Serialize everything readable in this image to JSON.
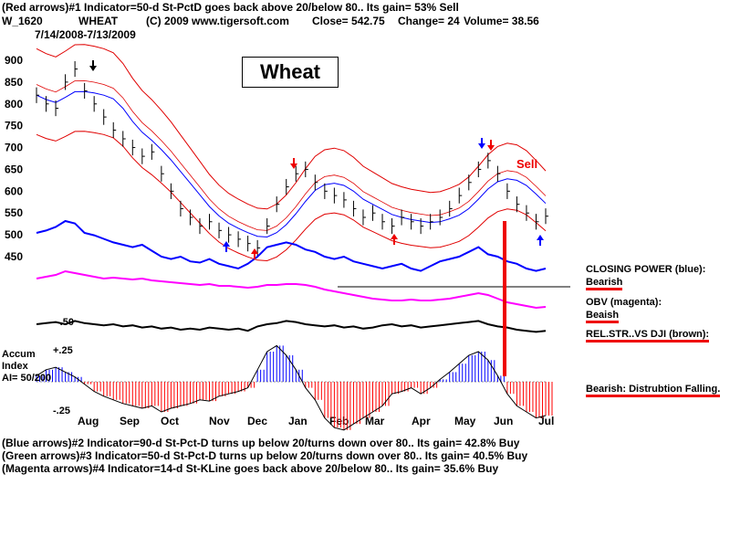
{
  "header": {
    "line1": "(Red arrows)#1 Indicator=50-d St-PctD goes back above 20/below 80.. Its gain= 53% Sell",
    "symbol": "W_1620",
    "name": "WHEAT",
    "copyright": "(C) 2009 www.tigersoft.com",
    "close": "Close=  542.75",
    "change": "Change= 24",
    "volume": "Volume= 38.56",
    "date_range": "7/14/2008-7/13/2009"
  },
  "footer": {
    "line1": "(Blue arrows)#2 Indicator=90-d St-Pct-D turns up below 20/turns down over 80.. Its gain= 42.8% Buy",
    "line2": "(Green arrows)#3 Indicator=50-d St-Pct-D turns up below 20/turns down over 80.. Its gain= 40.5% Buy",
    "line3": "(Magenta arrows)#4 Indicator=14-d St-KLine goes back above 20/below 80.. Its gain= 35.6% Buy"
  },
  "annotations": {
    "title": "Wheat",
    "sell": "Sell",
    "closing_power": "CLOSING POWER (blue):",
    "closing_power_status": "Bearish",
    "obv": "OBV (magenta):",
    "obv_status": "Beaish",
    "rel_str": "REL.STR..VS DJI (brown):",
    "accum_status": "Bearish: Distrubtion Falling.",
    "accum_label1": "Accum",
    "accum_label2": "Index",
    "accum_label3": "AI= 50/200",
    "rel_tick": "-.50"
  },
  "colors": {
    "price": "#000000",
    "bands": "#e00000",
    "ma": "#0000ff",
    "closing_power": "#0000ff",
    "obv": "#ff00ff",
    "rel_str": "#000000",
    "accum_pos": "#0000ff",
    "accum_neg": "#ff0000"
  },
  "chart_data": {
    "type": "line",
    "title": "Wheat",
    "price_ticks": [
      "900",
      "850",
      "800",
      "750",
      "700",
      "650",
      "600",
      "550",
      "500",
      "450"
    ],
    "ylim": [
      450,
      900
    ],
    "months": [
      "Aug",
      "Sep",
      "Oct",
      "Nov",
      "Dec",
      "Jan",
      "Feb",
      "Mar",
      "Apr",
      "May",
      "Jun",
      "Jul"
    ],
    "weekly_close": [
      820,
      800,
      790,
      850,
      880,
      830,
      800,
      770,
      740,
      720,
      700,
      680,
      690,
      640,
      600,
      560,
      540,
      520,
      530,
      510,
      500,
      490,
      480,
      470,
      520,
      570,
      610,
      640,
      650,
      620,
      600,
      590,
      580,
      560,
      540,
      550,
      530,
      520,
      540,
      530,
      520,
      530,
      540,
      560,
      590,
      620,
      650,
      670,
      640,
      600,
      570,
      550,
      530,
      542.75
    ],
    "closing_power": [
      50,
      52,
      55,
      60,
      58,
      50,
      48,
      45,
      42,
      40,
      38,
      40,
      35,
      30,
      28,
      30,
      26,
      25,
      28,
      24,
      22,
      20,
      24,
      30,
      38,
      40,
      42,
      40,
      36,
      34,
      30,
      28,
      30,
      26,
      24,
      22,
      20,
      22,
      24,
      20,
      18,
      22,
      26,
      28,
      30,
      34,
      38,
      32,
      30,
      26,
      24,
      20,
      18,
      20
    ],
    "obv": [
      40,
      42,
      44,
      48,
      46,
      44,
      42,
      40,
      41,
      40,
      39,
      40,
      38,
      37,
      36,
      35,
      34,
      33,
      34,
      32,
      32,
      31,
      30,
      31,
      33,
      33,
      34,
      34,
      33,
      31,
      28,
      26,
      24,
      22,
      20,
      18,
      17,
      16,
      16,
      17,
      16,
      16,
      17,
      18,
      20,
      22,
      24,
      22,
      18,
      14,
      12,
      10,
      8,
      9
    ],
    "rel_str": [
      50,
      52,
      54,
      50,
      56,
      52,
      50,
      48,
      50,
      46,
      48,
      44,
      46,
      42,
      44,
      40,
      42,
      40,
      44,
      42,
      40,
      42,
      38,
      46,
      50,
      52,
      56,
      54,
      50,
      48,
      46,
      48,
      44,
      46,
      42,
      44,
      48,
      50,
      46,
      48,
      44,
      46,
      48,
      50,
      52,
      54,
      56,
      50,
      46,
      44,
      40,
      38,
      36,
      38
    ],
    "accum_index": [
      0.05,
      0.1,
      0.12,
      0.08,
      0.04,
      -0.02,
      -0.08,
      -0.12,
      -0.15,
      -0.18,
      -0.2,
      -0.22,
      -0.2,
      -0.25,
      -0.22,
      -0.2,
      -0.18,
      -0.15,
      -0.16,
      -0.12,
      -0.1,
      -0.08,
      -0.05,
      0.1,
      0.25,
      0.3,
      0.22,
      0.1,
      -0.05,
      -0.15,
      -0.3,
      -0.38,
      -0.4,
      -0.35,
      -0.3,
      -0.25,
      -0.2,
      -0.1,
      -0.08,
      -0.05,
      -0.1,
      -0.05,
      0.02,
      0.08,
      0.15,
      0.22,
      0.25,
      0.18,
      0.05,
      -0.1,
      -0.2,
      -0.25,
      -0.3,
      -0.28
    ],
    "accum_ticks": [
      "+.25",
      "-.25"
    ],
    "accum_ylim": [
      -0.25,
      0.25
    ]
  }
}
